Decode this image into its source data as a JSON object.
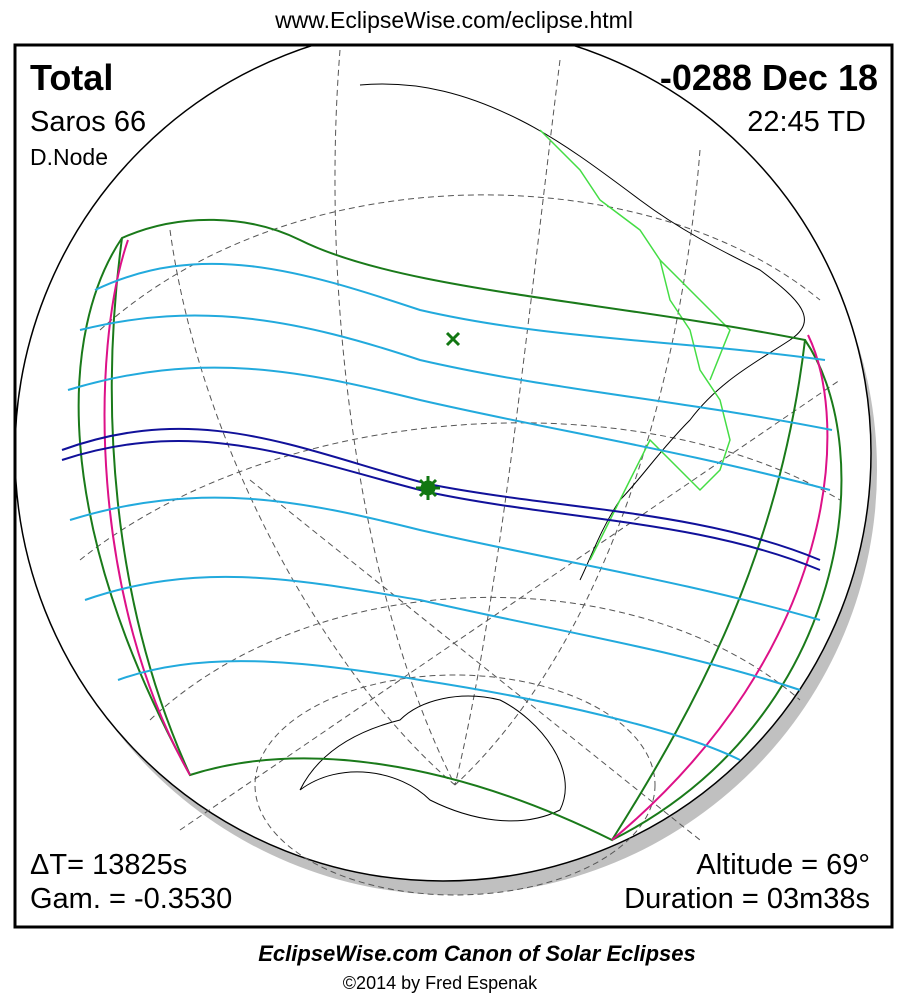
{
  "header": {
    "url": "www.EclipseWise.com/eclipse.html"
  },
  "panel": {
    "eclipse_type": "Total",
    "date": "-0288 Dec 18",
    "saros": "Saros  66",
    "time": "22:45 TD",
    "node": "D.Node",
    "delta_t": "ΔT=  13825s",
    "gamma": "Gam. = -0.3530",
    "altitude": "Altitude = 69°",
    "duration": "Duration = 03m38s"
  },
  "footer": {
    "title": "EclipseWise.com Canon of Solar Eclipses",
    "credit": "©2014 by Fred Espenak"
  }
}
